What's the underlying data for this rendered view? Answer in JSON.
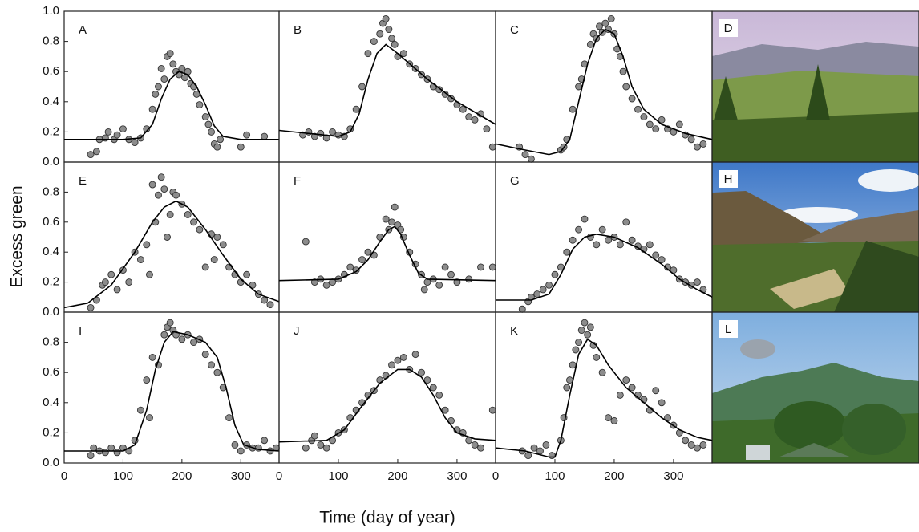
{
  "figure": {
    "x_label": "Time (day of year)",
    "y_label": "Excess green"
  },
  "colors": {
    "points": "#8c8c8c",
    "fit": "#000000"
  },
  "photos": [
    {
      "label": "D"
    },
    {
      "label": "H"
    },
    {
      "label": "L"
    }
  ],
  "chart_data": [
    {
      "type": "scatter",
      "title": "A",
      "xlim": [
        0,
        365
      ],
      "ylim": [
        0,
        1
      ],
      "yticks": [
        {
          "value": 0,
          "label": "0.0"
        },
        0.2,
        0.4,
        0.6,
        0.8,
        {
          "value": 1,
          "label": "1.0"
        }
      ],
      "points": {
        "x": [
          45,
          55,
          60,
          70,
          75,
          85,
          90,
          100,
          110,
          120,
          130,
          140,
          150,
          155,
          160,
          165,
          170,
          175,
          180,
          185,
          190,
          195,
          200,
          205,
          210,
          215,
          220,
          225,
          230,
          240,
          245,
          250,
          255,
          260,
          265,
          300,
          310,
          340
        ],
        "y": [
          0.05,
          0.07,
          0.15,
          0.16,
          0.2,
          0.15,
          0.18,
          0.22,
          0.15,
          0.13,
          0.16,
          0.22,
          0.35,
          0.45,
          0.5,
          0.62,
          0.55,
          0.7,
          0.72,
          0.65,
          0.6,
          0.58,
          0.62,
          0.56,
          0.6,
          0.52,
          0.5,
          0.45,
          0.38,
          0.3,
          0.25,
          0.2,
          0.12,
          0.1,
          0.15,
          0.1,
          0.18,
          0.17
        ]
      },
      "fit": {
        "x": [
          0,
          100,
          130,
          150,
          165,
          180,
          195,
          210,
          225,
          240,
          255,
          270,
          300,
          365
        ],
        "y": [
          0.15,
          0.15,
          0.16,
          0.25,
          0.42,
          0.55,
          0.6,
          0.58,
          0.5,
          0.38,
          0.24,
          0.17,
          0.15,
          0.15
        ]
      }
    },
    {
      "type": "scatter",
      "title": "B",
      "xlim": [
        0,
        365
      ],
      "ylim": [
        0,
        1
      ],
      "points": {
        "x": [
          40,
          50,
          60,
          70,
          80,
          90,
          100,
          110,
          120,
          130,
          140,
          150,
          160,
          170,
          175,
          180,
          185,
          190,
          195,
          200,
          210,
          220,
          230,
          240,
          250,
          260,
          270,
          280,
          290,
          300,
          310,
          320,
          330,
          340,
          350,
          360
        ],
        "y": [
          0.18,
          0.2,
          0.17,
          0.19,
          0.16,
          0.2,
          0.18,
          0.17,
          0.22,
          0.35,
          0.5,
          0.72,
          0.8,
          0.85,
          0.92,
          0.95,
          0.88,
          0.82,
          0.78,
          0.7,
          0.72,
          0.65,
          0.62,
          0.58,
          0.55,
          0.5,
          0.48,
          0.45,
          0.42,
          0.38,
          0.35,
          0.3,
          0.28,
          0.32,
          0.22,
          0.1
        ]
      },
      "fit": {
        "x": [
          0,
          50,
          100,
          120,
          135,
          150,
          165,
          180,
          200,
          250,
          300,
          365
        ],
        "y": [
          0.21,
          0.19,
          0.17,
          0.2,
          0.32,
          0.55,
          0.72,
          0.78,
          0.72,
          0.55,
          0.4,
          0.25
        ]
      }
    },
    {
      "type": "scatter",
      "title": "C",
      "xlim": [
        0,
        365
      ],
      "ylim": [
        0,
        1
      ],
      "points": {
        "x": [
          40,
          50,
          60,
          110,
          115,
          120,
          130,
          140,
          145,
          150,
          160,
          165,
          170,
          175,
          180,
          185,
          190,
          195,
          200,
          205,
          210,
          215,
          220,
          230,
          240,
          250,
          260,
          270,
          280,
          290,
          300,
          310,
          320,
          330,
          340,
          350
        ],
        "y": [
          0.1,
          0.05,
          0.02,
          0.08,
          0.1,
          0.15,
          0.35,
          0.5,
          0.55,
          0.65,
          0.78,
          0.85,
          0.82,
          0.9,
          0.86,
          0.92,
          0.88,
          0.95,
          0.85,
          0.75,
          0.7,
          0.6,
          0.5,
          0.42,
          0.35,
          0.3,
          0.25,
          0.22,
          0.28,
          0.22,
          0.2,
          0.25,
          0.18,
          0.15,
          0.1,
          0.12
        ]
      },
      "fit": {
        "x": [
          0,
          50,
          90,
          110,
          125,
          140,
          155,
          170,
          185,
          200,
          215,
          230,
          250,
          280,
          320,
          365
        ],
        "y": [
          0.12,
          0.08,
          0.05,
          0.07,
          0.15,
          0.4,
          0.65,
          0.82,
          0.88,
          0.85,
          0.7,
          0.5,
          0.35,
          0.25,
          0.19,
          0.15
        ]
      }
    },
    {
      "type": "scatter",
      "title": "E",
      "xlim": [
        0,
        365
      ],
      "ylim": [
        0,
        1
      ],
      "yticks": [
        {
          "value": 0,
          "label": "0.0"
        },
        0.2,
        0.4,
        0.6,
        0.8
      ],
      "points": {
        "x": [
          45,
          55,
          65,
          70,
          80,
          90,
          100,
          110,
          120,
          130,
          140,
          145,
          150,
          155,
          160,
          165,
          170,
          175,
          180,
          185,
          190,
          200,
          210,
          220,
          230,
          240,
          250,
          255,
          260,
          270,
          280,
          290,
          300,
          310,
          320,
          330,
          340,
          350
        ],
        "y": [
          0.03,
          0.08,
          0.18,
          0.2,
          0.25,
          0.15,
          0.28,
          0.2,
          0.4,
          0.35,
          0.45,
          0.25,
          0.85,
          0.6,
          0.78,
          0.9,
          0.82,
          0.5,
          0.65,
          0.8,
          0.78,
          0.72,
          0.65,
          0.6,
          0.55,
          0.3,
          0.52,
          0.35,
          0.5,
          0.45,
          0.3,
          0.25,
          0.2,
          0.25,
          0.18,
          0.12,
          0.08,
          0.05
        ]
      },
      "fit": {
        "x": [
          0,
          40,
          80,
          120,
          150,
          170,
          190,
          210,
          240,
          270,
          300,
          330,
          365
        ],
        "y": [
          0.03,
          0.06,
          0.18,
          0.4,
          0.6,
          0.7,
          0.74,
          0.7,
          0.55,
          0.38,
          0.22,
          0.12,
          0.07
        ]
      }
    },
    {
      "type": "scatter",
      "title": "F",
      "xlim": [
        0,
        365
      ],
      "ylim": [
        0,
        1
      ],
      "points": {
        "x": [
          45,
          60,
          70,
          80,
          90,
          100,
          110,
          120,
          130,
          140,
          150,
          160,
          170,
          180,
          185,
          190,
          195,
          200,
          205,
          210,
          220,
          230,
          240,
          245,
          250,
          260,
          270,
          280,
          290,
          300,
          320,
          340,
          360
        ],
        "y": [
          0.47,
          0.2,
          0.22,
          0.18,
          0.2,
          0.22,
          0.25,
          0.3,
          0.28,
          0.35,
          0.4,
          0.38,
          0.5,
          0.62,
          0.55,
          0.6,
          0.7,
          0.58,
          0.55,
          0.5,
          0.4,
          0.32,
          0.25,
          0.15,
          0.2,
          0.22,
          0.18,
          0.3,
          0.25,
          0.2,
          0.22,
          0.3,
          0.3
        ]
      },
      "fit": {
        "x": [
          0,
          100,
          130,
          150,
          170,
          185,
          195,
          205,
          220,
          235,
          250,
          365
        ],
        "y": [
          0.21,
          0.22,
          0.27,
          0.35,
          0.47,
          0.55,
          0.57,
          0.52,
          0.38,
          0.26,
          0.22,
          0.21
        ]
      }
    },
    {
      "type": "scatter",
      "title": "G",
      "xlim": [
        0,
        365
      ],
      "ylim": [
        0,
        1
      ],
      "points": {
        "x": [
          45,
          55,
          60,
          70,
          80,
          90,
          100,
          110,
          120,
          130,
          140,
          150,
          160,
          170,
          180,
          190,
          200,
          210,
          220,
          230,
          240,
          250,
          260,
          270,
          280,
          290,
          300,
          310,
          320,
          330,
          340,
          350
        ],
        "y": [
          0.02,
          0.07,
          0.1,
          0.12,
          0.15,
          0.18,
          0.25,
          0.3,
          0.4,
          0.48,
          0.55,
          0.62,
          0.5,
          0.45,
          0.55,
          0.48,
          0.5,
          0.45,
          0.6,
          0.48,
          0.44,
          0.42,
          0.45,
          0.38,
          0.35,
          0.3,
          0.28,
          0.22,
          0.2,
          0.18,
          0.2,
          0.15
        ]
      },
      "fit": {
        "x": [
          0,
          60,
          90,
          110,
          130,
          150,
          170,
          200,
          240,
          280,
          310,
          340,
          365
        ],
        "y": [
          0.08,
          0.08,
          0.12,
          0.25,
          0.42,
          0.5,
          0.52,
          0.5,
          0.43,
          0.32,
          0.22,
          0.15,
          0.1
        ]
      }
    },
    {
      "type": "scatter",
      "title": "I",
      "xlim": [
        0,
        365
      ],
      "ylim": [
        0,
        1
      ],
      "yticks": [
        {
          "value": 0,
          "label": "0.0"
        },
        0.2,
        0.4,
        0.6,
        0.8
      ],
      "xticks": [
        0,
        100,
        200,
        300
      ],
      "points": {
        "x": [
          45,
          50,
          60,
          70,
          80,
          90,
          100,
          110,
          120,
          130,
          140,
          145,
          150,
          160,
          170,
          175,
          180,
          185,
          190,
          200,
          210,
          220,
          230,
          240,
          250,
          260,
          270,
          280,
          290,
          300,
          310,
          320,
          330,
          340,
          350,
          360
        ],
        "y": [
          0.05,
          0.1,
          0.08,
          0.07,
          0.1,
          0.07,
          0.1,
          0.08,
          0.15,
          0.35,
          0.55,
          0.3,
          0.7,
          0.65,
          0.85,
          0.9,
          0.93,
          0.88,
          0.85,
          0.82,
          0.85,
          0.8,
          0.82,
          0.72,
          0.65,
          0.6,
          0.5,
          0.3,
          0.12,
          0.08,
          0.12,
          0.1,
          0.1,
          0.15,
          0.08,
          0.1
        ]
      },
      "fit": {
        "x": [
          0,
          100,
          120,
          140,
          155,
          170,
          185,
          210,
          240,
          260,
          275,
          290,
          305,
          330,
          365
        ],
        "y": [
          0.08,
          0.08,
          0.12,
          0.35,
          0.62,
          0.8,
          0.87,
          0.85,
          0.8,
          0.7,
          0.5,
          0.25,
          0.12,
          0.09,
          0.08
        ]
      }
    },
    {
      "type": "scatter",
      "title": "J",
      "xlim": [
        0,
        365
      ],
      "ylim": [
        0,
        1
      ],
      "xticks": [
        0,
        100,
        200,
        300
      ],
      "points": {
        "x": [
          45,
          55,
          60,
          70,
          80,
          90,
          100,
          110,
          120,
          130,
          140,
          150,
          160,
          170,
          180,
          190,
          200,
          210,
          220,
          230,
          240,
          250,
          260,
          270,
          280,
          290,
          300,
          310,
          320,
          330,
          340,
          360
        ],
        "y": [
          0.1,
          0.15,
          0.18,
          0.12,
          0.1,
          0.15,
          0.2,
          0.22,
          0.3,
          0.35,
          0.4,
          0.45,
          0.48,
          0.55,
          0.58,
          0.65,
          0.68,
          0.7,
          0.62,
          0.72,
          0.6,
          0.55,
          0.5,
          0.45,
          0.35,
          0.28,
          0.22,
          0.2,
          0.15,
          0.12,
          0.1,
          0.35
        ]
      },
      "fit": {
        "x": [
          0,
          80,
          110,
          140,
          170,
          200,
          220,
          240,
          260,
          280,
          300,
          330,
          365
        ],
        "y": [
          0.14,
          0.15,
          0.22,
          0.38,
          0.53,
          0.62,
          0.62,
          0.57,
          0.45,
          0.3,
          0.2,
          0.16,
          0.15
        ]
      }
    },
    {
      "type": "scatter",
      "title": "K",
      "xlim": [
        0,
        365
      ],
      "ylim": [
        0,
        1
      ],
      "xticks": [
        0,
        100,
        200,
        300
      ],
      "points": {
        "x": [
          45,
          55,
          65,
          75,
          85,
          95,
          110,
          115,
          120,
          125,
          130,
          135,
          140,
          145,
          150,
          155,
          160,
          165,
          170,
          180,
          190,
          200,
          210,
          220,
          230,
          240,
          250,
          260,
          270,
          280,
          290,
          300,
          310,
          320,
          330,
          340,
          350
        ],
        "y": [
          0.08,
          0.05,
          0.1,
          0.08,
          0.12,
          0.05,
          0.15,
          0.3,
          0.5,
          0.55,
          0.65,
          0.75,
          0.8,
          0.88,
          0.93,
          0.85,
          0.9,
          0.78,
          0.7,
          0.6,
          0.3,
          0.28,
          0.45,
          0.55,
          0.5,
          0.45,
          0.42,
          0.35,
          0.48,
          0.4,
          0.3,
          0.25,
          0.2,
          0.15,
          0.12,
          0.1,
          0.12
        ]
      },
      "fit": {
        "x": [
          0,
          50,
          90,
          100,
          110,
          125,
          140,
          155,
          170,
          190,
          220,
          250,
          280,
          310,
          340,
          365
        ],
        "y": [
          0.1,
          0.08,
          0.04,
          0.04,
          0.15,
          0.45,
          0.72,
          0.82,
          0.78,
          0.65,
          0.5,
          0.4,
          0.3,
          0.22,
          0.17,
          0.15
        ]
      }
    }
  ]
}
